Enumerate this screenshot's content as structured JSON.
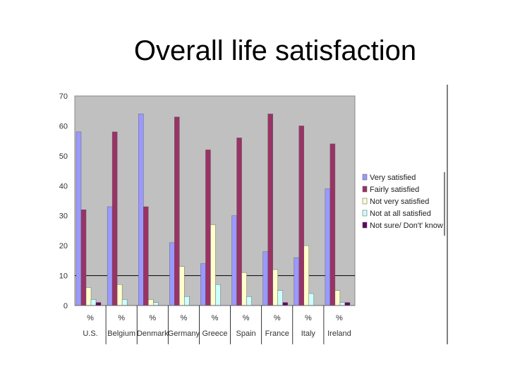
{
  "slide": {
    "title": "Overall life satisfaction"
  },
  "chart_data": {
    "type": "bar",
    "title": "Overall life satisfaction",
    "ylim": [
      0,
      70
    ],
    "y_ticks": [
      0,
      10,
      20,
      30,
      40,
      50,
      60,
      70
    ],
    "unit_label": "%",
    "categories": [
      "U.S.",
      "Belgium",
      "Denmark",
      "Germany",
      "Greece",
      "Spain",
      "France",
      "Italy",
      "Ireland"
    ],
    "series": [
      {
        "name": "Very satisfied",
        "color": "#9999ff",
        "values": [
          58,
          33,
          64,
          21,
          14,
          30,
          18,
          16,
          39
        ]
      },
      {
        "name": "Fairly satisfied",
        "color": "#993366",
        "values": [
          32,
          58,
          33,
          63,
          52,
          56,
          64,
          60,
          54
        ]
      },
      {
        "name": "Not very satisfied",
        "color": "#ffffcc",
        "values": [
          6,
          7,
          2,
          13,
          27,
          11,
          12,
          20,
          5
        ]
      },
      {
        "name": "Not at all satisfied",
        "color": "#ccffff",
        "values": [
          2,
          2,
          1,
          3,
          7,
          3,
          5,
          4,
          1
        ]
      },
      {
        "name": "Not sure/ Don't' know",
        "color": "#660066",
        "values": [
          1,
          0,
          0,
          0,
          0,
          0,
          1,
          0,
          1
        ]
      }
    ],
    "grid_lines": [
      10
    ],
    "background_color": "#c0c0c0",
    "legend_position": "right"
  }
}
